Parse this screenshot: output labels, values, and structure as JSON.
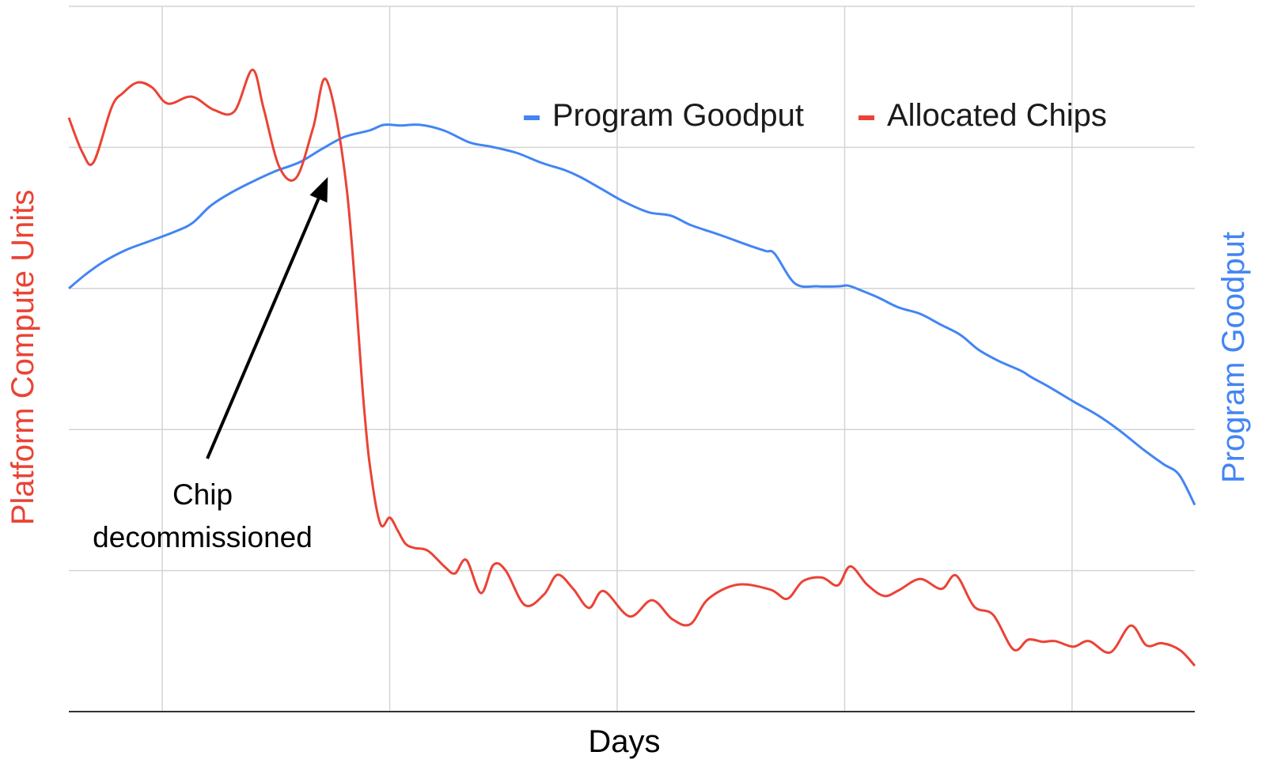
{
  "chart_data": {
    "type": "line",
    "title": "",
    "xlabel": "Days",
    "ylabel_left": "Platform Compute Units",
    "ylabel_right": "Program Goodput",
    "ylim": [
      0,
      100
    ],
    "xlim": [
      0,
      100
    ],
    "grid": true,
    "legend_position": "top-right",
    "x_gridline_positions": [
      8.3,
      28.5,
      48.7,
      68.9,
      89.1
    ],
    "y_gridline_values": [
      20,
      40,
      60,
      80,
      100
    ],
    "series": [
      {
        "name": "Program Goodput",
        "color": "#4285f4",
        "axis": "right",
        "x": [
          0,
          1.5,
          3,
          5,
          7,
          9.5,
          11,
          12.5,
          14,
          16,
          18.3,
          20.5,
          22.5,
          24.5,
          26.7,
          28,
          29.5,
          31.2,
          33.3,
          35.6,
          37.5,
          39.8,
          42,
          44,
          45.3,
          47,
          49.3,
          51.5,
          53.5,
          55.2,
          57.8,
          60.4,
          61.9,
          62.7,
          64.5,
          66.5,
          68.4,
          69.2,
          70.4,
          71.9,
          73.7,
          75.6,
          77.4,
          79.2,
          80.8,
          82.6,
          84.6,
          85.5,
          87.1,
          89.3,
          91.3,
          93.2,
          95.4,
          97.2,
          98.6,
          100
        ],
        "values": [
          60.0,
          62.0,
          63.7,
          65.4,
          66.6,
          68.1,
          69.3,
          71.6,
          73.2,
          74.9,
          76.6,
          77.9,
          79.8,
          81.5,
          82.4,
          83.2,
          83.1,
          83.2,
          82.4,
          80.7,
          80.1,
          79.2,
          77.8,
          76.8,
          75.9,
          74.4,
          72.3,
          70.8,
          70.3,
          69.0,
          67.6,
          66.1,
          65.3,
          64.9,
          60.7,
          60.3,
          60.3,
          60.4,
          59.7,
          58.7,
          57.3,
          56.4,
          54.9,
          53.4,
          51.3,
          49.7,
          48.3,
          47.4,
          46.0,
          43.9,
          42.1,
          40.0,
          37.2,
          35.1,
          33.6,
          29.3
        ]
      },
      {
        "name": "Allocated Chips",
        "color": "#ea4335",
        "axis": "left",
        "x": [
          0,
          1.2,
          2.2,
          3.8,
          4.8,
          6.1,
          7.4,
          8.8,
          10.9,
          12.9,
          14.7,
          16.3,
          17.3,
          18.7,
          20.2,
          21.7,
          22.9,
          24.7,
          26.2,
          26.9,
          27.7,
          28.5,
          29.2,
          29.9,
          30.7,
          31.9,
          33.4,
          34.3,
          35.3,
          36.6,
          37.7,
          38.8,
          40.5,
          42.2,
          43.4,
          44.8,
          46.2,
          47.5,
          49.8,
          51.8,
          53.6,
          55.2,
          56.8,
          59.4,
          62.3,
          63.8,
          65.2,
          66.9,
          68.3,
          69.4,
          70.9,
          72.4,
          73.7,
          75.6,
          77.5,
          78.8,
          80.4,
          82.1,
          83.9,
          85.2,
          86.5,
          87.6,
          89.2,
          90.6,
          92.5,
          94.3,
          95.7,
          97.1,
          98.7,
          100
        ],
        "values": [
          84.2,
          79.3,
          77.9,
          85.7,
          87.7,
          89.2,
          88.5,
          86.2,
          87.2,
          85.3,
          85.1,
          91.0,
          85.5,
          77.2,
          75.7,
          82.8,
          89.5,
          73.8,
          43.5,
          33.0,
          26.5,
          27.5,
          25.7,
          23.8,
          23.2,
          22.8,
          20.5,
          19.6,
          21.5,
          16.8,
          20.8,
          20.0,
          15.1,
          16.6,
          19.4,
          17.4,
          14.7,
          17.1,
          13.5,
          15.8,
          13.1,
          12.4,
          16.0,
          18.0,
          17.3,
          16.0,
          18.5,
          19.0,
          17.9,
          20.6,
          18.0,
          16.4,
          17.2,
          18.8,
          17.4,
          19.3,
          14.9,
          13.7,
          8.8,
          10.2,
          9.9,
          10.0,
          9.2,
          10.0,
          8.4,
          12.2,
          9.4,
          9.7,
          8.7,
          6.5
        ]
      }
    ],
    "annotation": {
      "text_lines": [
        "Chip",
        "decommissioned"
      ],
      "target_x": 23.0,
      "target_y": 75.8
    }
  }
}
